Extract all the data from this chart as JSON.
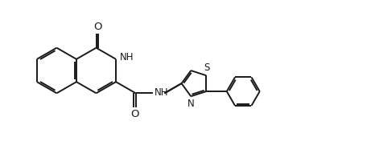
{
  "background_color": "#ffffff",
  "line_color": "#1a1a1a",
  "text_color": "#1a1a1a",
  "line_width": 1.4,
  "font_size": 8.5,
  "fig_width": 4.66,
  "fig_height": 1.76,
  "dpi": 100,
  "xlim": [
    0,
    11.5
  ],
  "ylim": [
    0,
    4.4
  ]
}
